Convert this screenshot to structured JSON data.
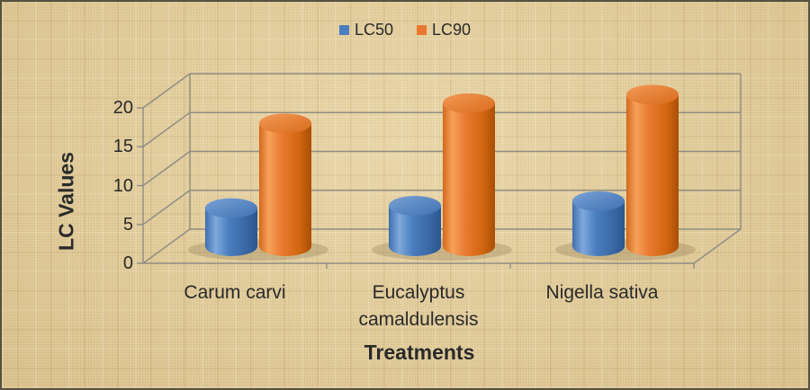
{
  "frame": {
    "background_color": "#e8d2a0",
    "border_color": "#57513f",
    "text_color": "#2a2a2a"
  },
  "chart_data": {
    "type": "bar",
    "subtype": "3d-cylinder",
    "categories": [
      "Carum carvi",
      "Eucalyptus camaldulensis",
      "Nigella sativa"
    ],
    "series": [
      {
        "name": "LC50",
        "color": "#4a7ebf",
        "values": [
          4.9,
          5.2,
          5.8
        ]
      },
      {
        "name": "LC90",
        "color": "#e8782f",
        "values": [
          15.8,
          18.4,
          19.5
        ]
      }
    ],
    "xlabel": "Treatments",
    "ylabel": "LC Values",
    "ylim": [
      0,
      20
    ],
    "yticks": [
      0,
      5,
      10,
      15,
      20
    ],
    "grid": true,
    "legend_position": "top",
    "gridline_color": "#8f8d84",
    "series_colors": {
      "lc50_light": "#7fa9dc",
      "lc50_dark": "#2a5590",
      "lc90_light": "#f7a159",
      "lc90_dark": "#a84f07"
    }
  }
}
